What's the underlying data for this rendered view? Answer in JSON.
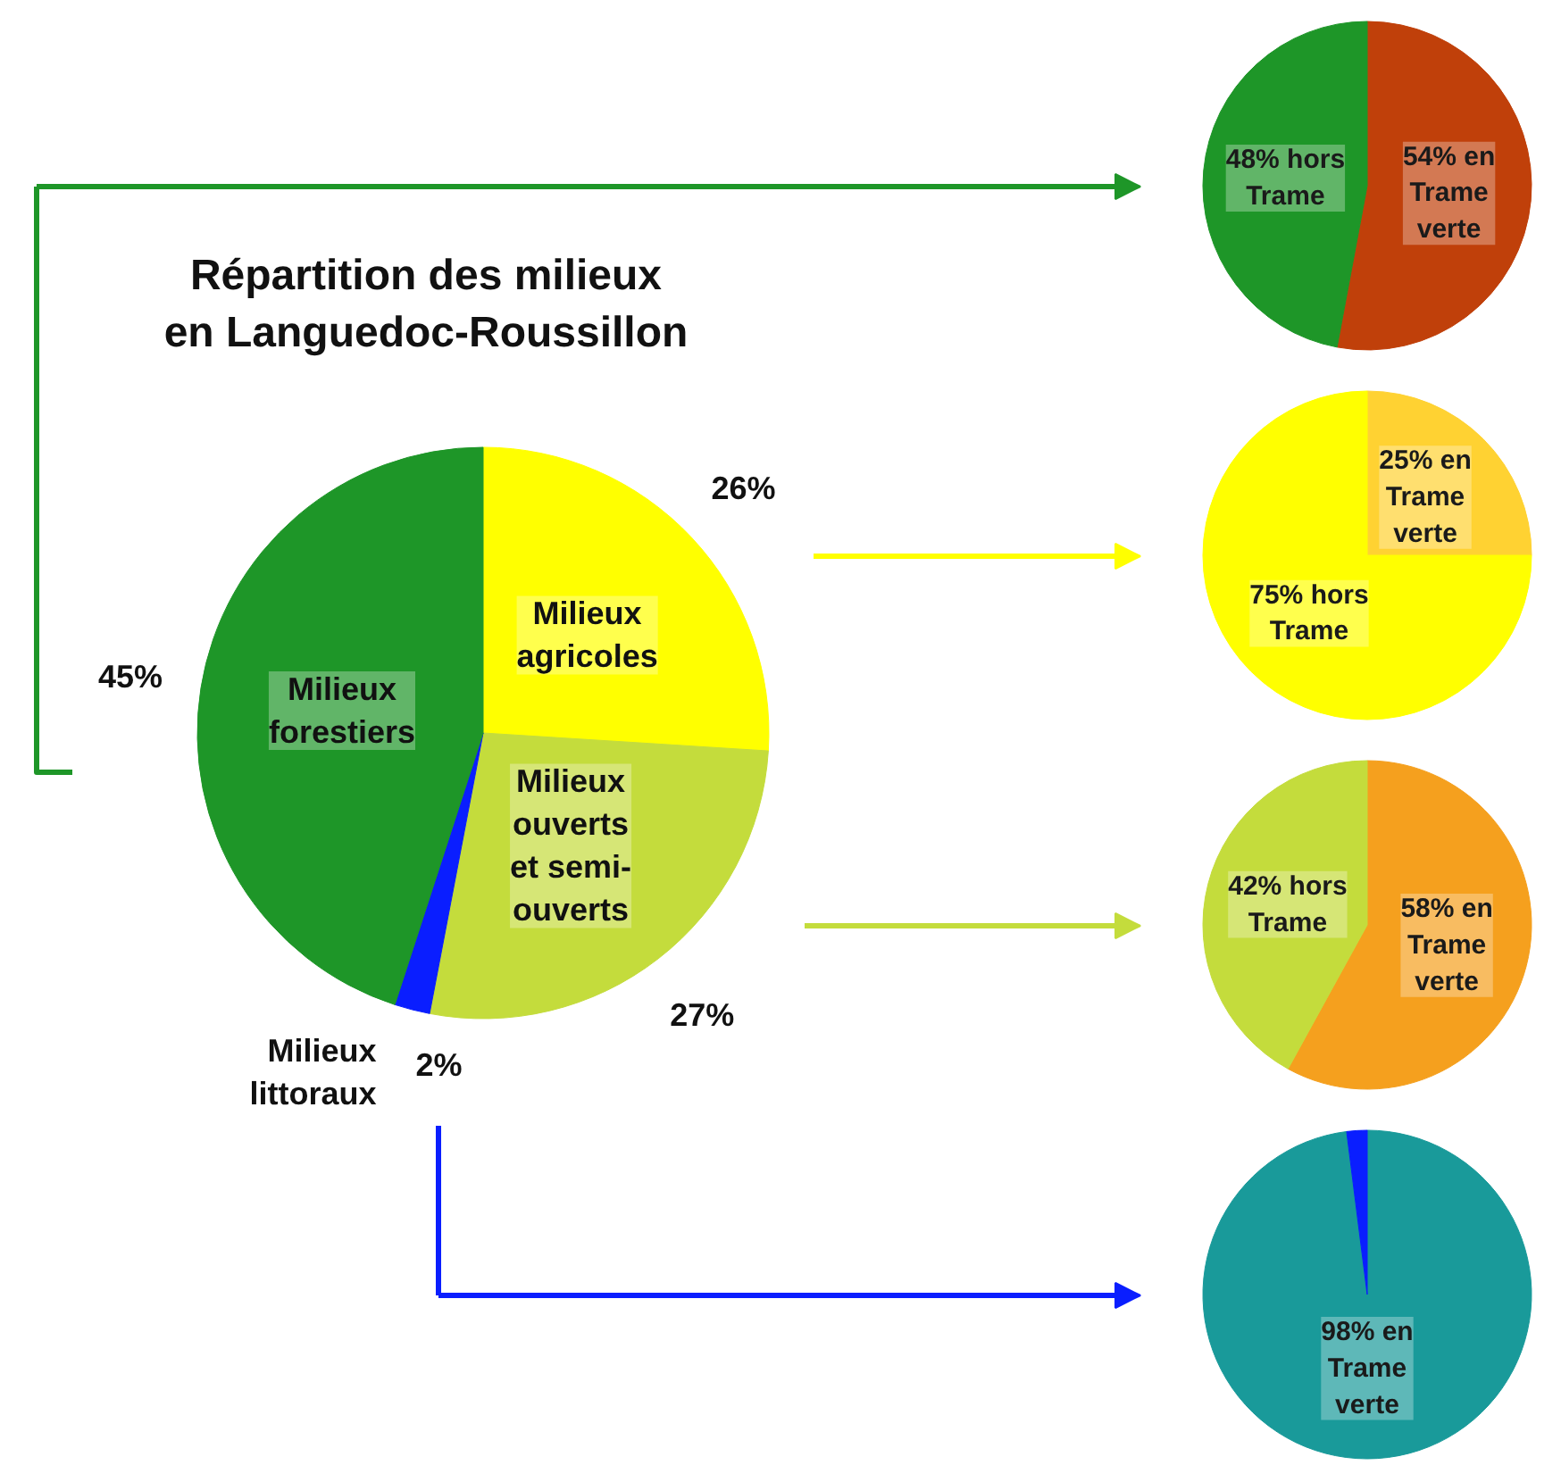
{
  "chart_data": [
    {
      "type": "pie",
      "title": "Répartition des milieux en Languedoc-Roussillon",
      "categories": [
        "Milieux agricoles",
        "Milieux ouverts et semi-ouverts",
        "Milieux littoraux",
        "Milieux forestiers"
      ],
      "values": [
        26,
        27,
        2,
        45
      ],
      "colors": [
        "#ffff00",
        "#c4dc3c",
        "#0a1eff",
        "#1e9628"
      ],
      "value_labels": [
        "26%",
        "27%",
        "2%",
        "45%"
      ]
    },
    {
      "type": "pie",
      "categories": [
        null,
        null
      ],
      "values": [
        54,
        48
      ],
      "colors": [
        "#c0400a",
        "#1e9628"
      ],
      "value_labels": [
        "54% en Trame verte",
        "48% hors Trame"
      ]
    },
    {
      "type": "pie",
      "categories": [
        null,
        null
      ],
      "values": [
        25,
        75
      ],
      "colors": [
        "#ffd232",
        "#ffff00"
      ],
      "value_labels": [
        "25% en Trame verte",
        "75% hors Trame"
      ]
    },
    {
      "type": "pie",
      "categories": [
        null,
        null
      ],
      "values": [
        58,
        42
      ],
      "colors": [
        "#f5a01e",
        "#c4dc3c"
      ],
      "value_labels": [
        "58% en Trame verte",
        "42% hors Trame"
      ]
    },
    {
      "type": "pie",
      "categories": [
        null,
        null
      ],
      "values": [
        98,
        2
      ],
      "colors": [
        "#199a9a",
        "#0a1eff"
      ],
      "value_labels": [
        "98% en Trame verte",
        null
      ]
    }
  ]
}
